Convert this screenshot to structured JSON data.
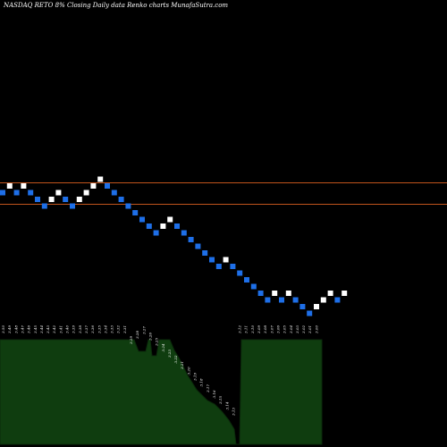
{
  "chart_data": {
    "type": "renko",
    "title": "NASDAQ RETO 8% Closing Daily data Renko charts MunafaSutra.com",
    "colors": {
      "background": "#000000",
      "up_brick": "#ffffff",
      "down_brick": "#1e6fe8",
      "reference_line": "#c0541c",
      "lower_panel_fill": "#0f3d0f",
      "lower_panel_edge": "#0b2a0b"
    },
    "bricks": [
      {
        "dir": "down"
      },
      {
        "dir": "up"
      },
      {
        "dir": "down"
      },
      {
        "dir": "up"
      },
      {
        "dir": "down"
      },
      {
        "dir": "down"
      },
      {
        "dir": "down"
      },
      {
        "dir": "up"
      },
      {
        "dir": "up"
      },
      {
        "dir": "down"
      },
      {
        "dir": "down"
      },
      {
        "dir": "up"
      },
      {
        "dir": "up"
      },
      {
        "dir": "up"
      },
      {
        "dir": "up"
      },
      {
        "dir": "down"
      },
      {
        "dir": "down"
      },
      {
        "dir": "down"
      },
      {
        "dir": "down"
      },
      {
        "dir": "down"
      },
      {
        "dir": "down"
      },
      {
        "dir": "down"
      },
      {
        "dir": "down"
      },
      {
        "dir": "up"
      },
      {
        "dir": "up"
      },
      {
        "dir": "down"
      },
      {
        "dir": "down"
      },
      {
        "dir": "down"
      },
      {
        "dir": "down"
      },
      {
        "dir": "down"
      },
      {
        "dir": "down"
      },
      {
        "dir": "down"
      },
      {
        "dir": "up"
      },
      {
        "dir": "down"
      },
      {
        "dir": "down"
      },
      {
        "dir": "down"
      },
      {
        "dir": "down"
      },
      {
        "dir": "down"
      },
      {
        "dir": "down"
      },
      {
        "dir": "up"
      },
      {
        "dir": "down"
      },
      {
        "dir": "up"
      },
      {
        "dir": "down"
      },
      {
        "dir": "down"
      },
      {
        "dir": "down"
      },
      {
        "dir": "up"
      },
      {
        "dir": "up"
      },
      {
        "dir": "up"
      },
      {
        "dir": "down"
      },
      {
        "dir": "up"
      }
    ],
    "reference_lines": [
      "upper",
      "lower"
    ],
    "price_labels": [
      "3.50",
      "3.49",
      "3.48",
      "3.47",
      "3.46",
      "3.45",
      "3.44",
      "3.43",
      "3.42",
      "3.41",
      "3.40",
      "3.39",
      "3.38",
      "3.37",
      "3.36",
      "3.35",
      "3.34",
      "3.33",
      "3.32",
      "3.31",
      "3.29",
      "3.28",
      "3.27",
      "3.26",
      "3.25",
      "3.24",
      "3.23",
      "3.22",
      "3.21",
      "3.20",
      "3.19",
      "3.18",
      "3.17",
      "3.16",
      "3.15",
      "3.14",
      "3.13",
      "3.12",
      "3.11",
      "3.10",
      "3.09",
      "3.08",
      "3.07",
      "3.06",
      "3.05",
      "3.04",
      "3.03",
      "3.02",
      "3.01",
      "3.00"
    ]
  }
}
